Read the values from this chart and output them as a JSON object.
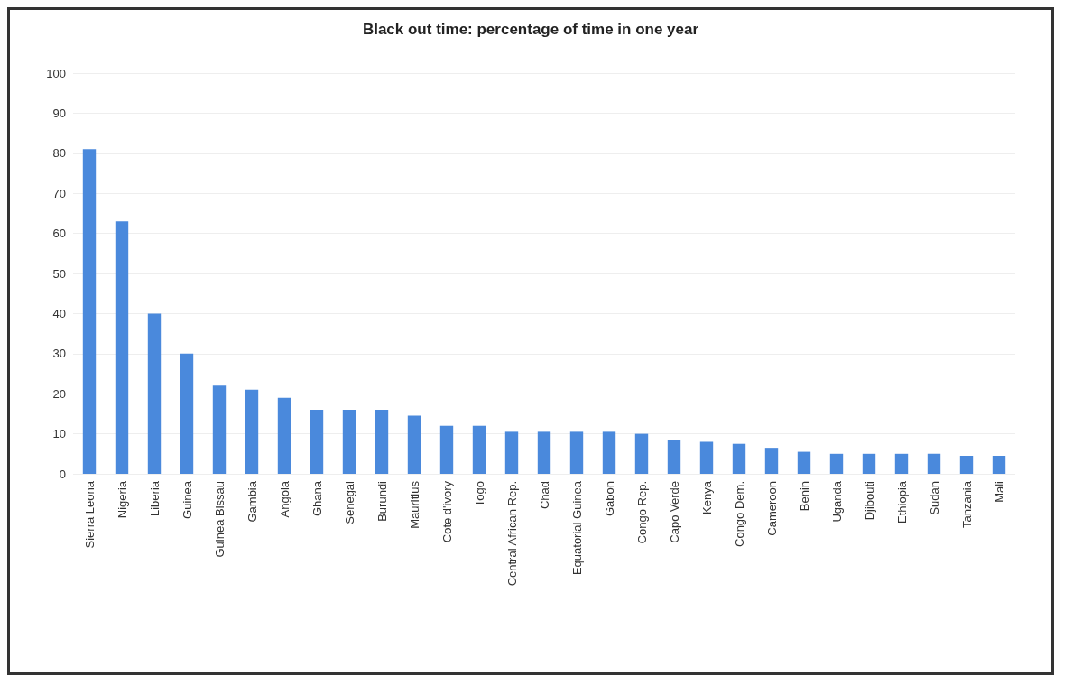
{
  "chart_data": {
    "type": "bar",
    "title": "Black out time: percentage of time in one year",
    "categories": [
      "Sierra Leona",
      "Nigeria",
      "Liberia",
      "Guinea",
      "Guinea Bissau",
      "Gambia",
      "Angola",
      "Ghana",
      "Senegal",
      "Burundi",
      "Mauritius",
      "Cote d'ivory",
      "Togo",
      "Central African Rep.",
      "Chad",
      "Equatorial Guinea",
      "Gabon",
      "Congo Rep.",
      "Capo Verde",
      "Kenya",
      "Congo Dem.",
      "Cameroon",
      "Benin",
      "Uganda",
      "Djibouti",
      "Ethiopia",
      "Sudan",
      "Tanzania",
      "Mali"
    ],
    "values": [
      81,
      63,
      40,
      30,
      22,
      21,
      19,
      16,
      16,
      16,
      14.5,
      12,
      12,
      10.5,
      10.5,
      10.5,
      10.5,
      10,
      8.5,
      8,
      7.5,
      6.5,
      5.5,
      5,
      5,
      5,
      5,
      4.5,
      4.5
    ],
    "color": "#4a89dc",
    "ylim": [
      0,
      100
    ],
    "yticks": [
      0,
      10,
      20,
      30,
      40,
      50,
      60,
      70,
      80,
      90,
      100
    ],
    "grid": true
  }
}
